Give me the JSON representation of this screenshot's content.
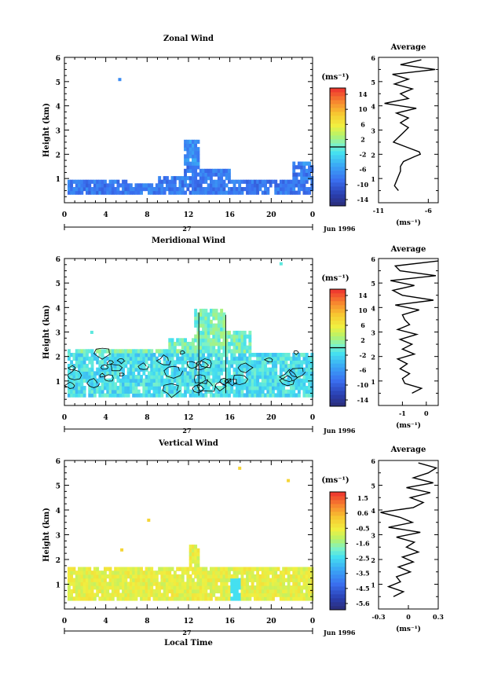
{
  "chart_data": [
    {
      "type": "heatmap",
      "title": "Zonal Wind",
      "ylabel": "Height (km)",
      "xlim": [
        0,
        24
      ],
      "ylim": [
        0,
        6
      ],
      "x_ticks": [
        "0",
        "4",
        "8",
        "12",
        "16",
        "20",
        "0"
      ],
      "y_ticks": [
        "1",
        "2",
        "3",
        "4",
        "5",
        "6"
      ],
      "date_day": "27",
      "date_label": "Jun 1996",
      "colorbar": {
        "unit": "(ms⁻¹)",
        "range": [
          -15,
          15
        ],
        "ticks": [
          "14",
          "10",
          "6",
          "2",
          "-2",
          "-6",
          "-10",
          "-14"
        ],
        "zero_line": 0
      },
      "average_profile": {
        "title": "Average",
        "xlabel": "(ms⁻¹)",
        "xlim": [
          -11,
          -5
        ],
        "x_ticks": [
          "-11",
          "-6"
        ],
        "height": [
          0.5,
          0.7,
          0.9,
          1.1,
          1.3,
          1.5,
          1.7,
          1.9,
          2.0,
          2.1,
          2.3,
          2.5,
          2.7,
          2.9,
          3.1,
          3.3,
          3.5,
          3.7,
          3.9,
          4.1,
          4.3,
          4.5,
          4.7,
          4.9,
          5.1,
          5.3,
          5.5,
          5.7,
          5.9
        ],
        "values": [
          -9.0,
          -9.4,
          -9.2,
          -9.0,
          -8.8,
          -8.8,
          -8.5,
          -7.4,
          -6.8,
          -6.9,
          -8.2,
          -9.5,
          -9.0,
          -8.5,
          -8.0,
          -8.8,
          -8.0,
          -9.2,
          -7.2,
          -10.4,
          -8.0,
          -8.8,
          -7.6,
          -9.4,
          -8.0,
          -9.6,
          -5.3,
          -8.8,
          -6.7
        ]
      }
    },
    {
      "type": "heatmap",
      "title": "Meridional Wind",
      "ylabel": "Height (km)",
      "xlim": [
        0,
        24
      ],
      "ylim": [
        0,
        6
      ],
      "x_ticks": [
        "0",
        "4",
        "8",
        "12",
        "16",
        "20",
        "0"
      ],
      "y_ticks": [
        "1",
        "2",
        "3",
        "4",
        "5",
        "6"
      ],
      "date_day": "27",
      "date_label": "Jun 1996",
      "colorbar": {
        "unit": "(ms⁻¹)",
        "range": [
          -15,
          15
        ],
        "ticks": [
          "14",
          "10",
          "6",
          "2",
          "-2",
          "-6",
          "-10",
          "-14"
        ],
        "zero_line": 0
      },
      "average_profile": {
        "title": "Average",
        "xlabel": "(ms⁻¹)",
        "xlim": [
          -2,
          0.5
        ],
        "x_ticks": [
          "-1",
          "0"
        ],
        "height": [
          0.5,
          0.7,
          0.9,
          1.1,
          1.3,
          1.5,
          1.7,
          1.9,
          2.1,
          2.3,
          2.5,
          2.7,
          2.9,
          3.1,
          3.3,
          3.5,
          3.7,
          3.9,
          4.1,
          4.3,
          4.5,
          4.7,
          4.9,
          5.1,
          5.3,
          5.5,
          5.7,
          5.9
        ],
        "values": [
          -0.6,
          -0.2,
          -0.9,
          -1.0,
          -0.7,
          -1.1,
          -0.8,
          -1.2,
          -0.5,
          -1.0,
          -0.6,
          -1.1,
          -0.4,
          -1.2,
          -0.7,
          -0.9,
          -1.0,
          -0.3,
          -1.3,
          0.3,
          -1.0,
          -1.4,
          -0.5,
          -1.5,
          0.4,
          -1.1,
          -1.3,
          0.5
        ]
      }
    },
    {
      "type": "heatmap",
      "title": "Vertical Wind",
      "ylabel": "Height (km)",
      "xlabel": "Local Time",
      "xlim": [
        0,
        24
      ],
      "ylim": [
        0,
        6
      ],
      "x_ticks": [
        "0",
        "4",
        "8",
        "12",
        "16",
        "20",
        "0"
      ],
      "y_ticks": [
        "1",
        "2",
        "3",
        "4",
        "5",
        "6"
      ],
      "date_day": "27",
      "date_label": "Jun 1996",
      "colorbar": {
        "unit": "(ms⁻¹)",
        "range": [
          -6,
          2
        ],
        "ticks": [
          "1.5",
          "0.6",
          "-0.5",
          "-1.6",
          "-2.5",
          "-3.5",
          "-4.5",
          "-5.6"
        ]
      },
      "average_profile": {
        "title": "Average",
        "xlabel": "(ms⁻¹)",
        "xlim": [
          -0.3,
          0.3
        ],
        "x_ticks": [
          "-0.3",
          "0",
          "0.3"
        ],
        "height": [
          0.5,
          0.7,
          0.9,
          1.1,
          1.3,
          1.5,
          1.7,
          1.9,
          2.1,
          2.3,
          2.5,
          2.7,
          2.9,
          3.1,
          3.3,
          3.5,
          3.7,
          3.9,
          4.1,
          4.3,
          4.5,
          4.7,
          4.9,
          5.1,
          5.3,
          5.5,
          5.7,
          5.9
        ],
        "values": [
          -0.15,
          -0.05,
          -0.2,
          -0.08,
          -0.12,
          0.02,
          -0.1,
          0.05,
          -0.06,
          0.1,
          -0.02,
          0.06,
          -0.12,
          0.12,
          -0.2,
          0.04,
          -0.08,
          -0.28,
          0.05,
          0.15,
          0.02,
          0.22,
          -0.02,
          0.25,
          0.05,
          0.2,
          0.28,
          0.1
        ]
      }
    }
  ]
}
